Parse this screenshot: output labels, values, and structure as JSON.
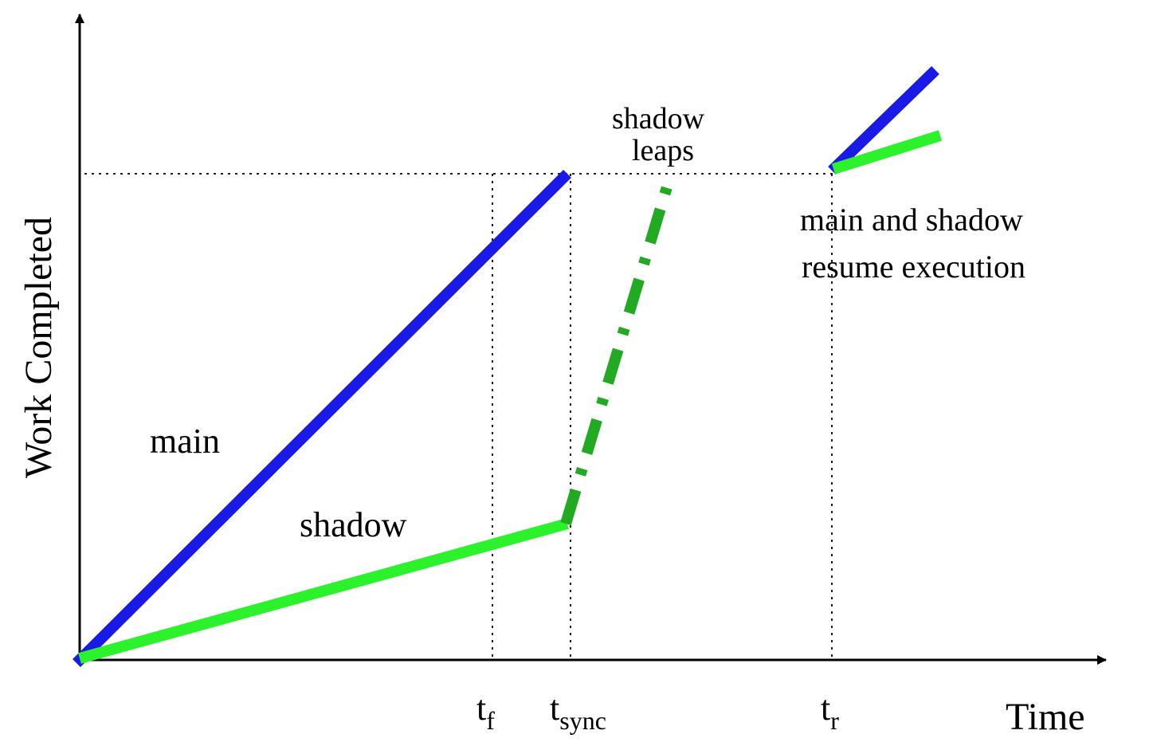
{
  "axes": {
    "y_label": "Work Completed",
    "x_label": "Time"
  },
  "ticks": {
    "tf_base": "t",
    "tf_sub": "f",
    "tsync_base": "t",
    "tsync_sub": "sync",
    "tr_base": "t",
    "tr_sub": "r"
  },
  "labels": {
    "main": "main",
    "shadow": "shadow",
    "shadow_leaps_line1": "shadow",
    "shadow_leaps_line2": "leaps",
    "resume_line1": "main and shadow",
    "resume_line2": "resume execution"
  },
  "colors": {
    "main": "#1a1ae6",
    "shadow": "#2cf22c",
    "shadow_leap": "#22aa22",
    "axis": "#000000"
  }
}
